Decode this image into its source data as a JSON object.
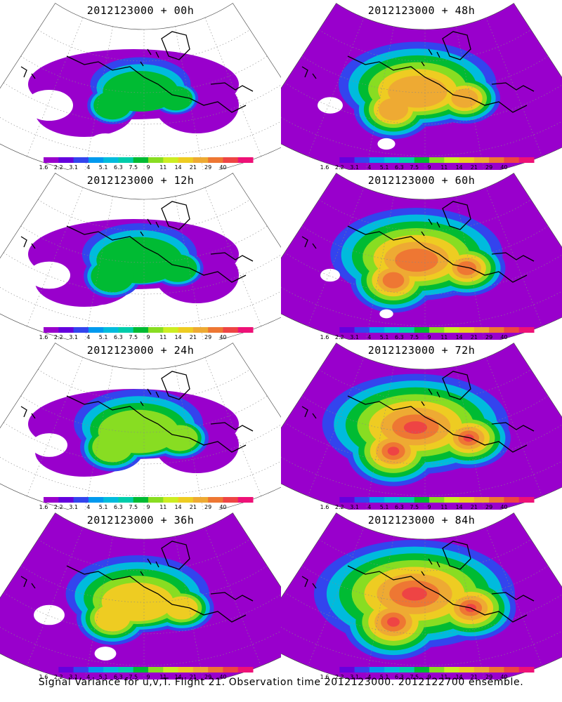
{
  "panels": [
    {
      "title": "2012123000 + 00h",
      "lead_hours": 0
    },
    {
      "title": "2012123000 + 48h",
      "lead_hours": 48
    },
    {
      "title": "2012123000 + 12h",
      "lead_hours": 12
    },
    {
      "title": "2012123000 + 60h",
      "lead_hours": 60
    },
    {
      "title": "2012123000 + 24h",
      "lead_hours": 24
    },
    {
      "title": "2012123000 + 72h",
      "lead_hours": 72
    },
    {
      "title": "2012123000 + 36h",
      "lead_hours": 36
    },
    {
      "title": "2012123000 + 84h",
      "lead_hours": 84
    }
  ],
  "colorbar": {
    "labels": [
      "1.6",
      "2.2",
      "3.1",
      "4",
      "5.1",
      "6.3",
      "7.5",
      "9",
      "11",
      "14",
      "21",
      "29",
      "40"
    ],
    "colors": [
      "#9900cc",
      "#6600dd",
      "#3344ee",
      "#0099ee",
      "#00bbdd",
      "#00ccaa",
      "#00bb33",
      "#88dd22",
      "#ccee22",
      "#eecc22",
      "#eeaa33",
      "#ee7733",
      "#ee4444",
      "#ee1177"
    ]
  },
  "footer": "Signal Variance for u,v,T. Flight 21. Observation time 2012123000. 2012122700 ensemble."
}
